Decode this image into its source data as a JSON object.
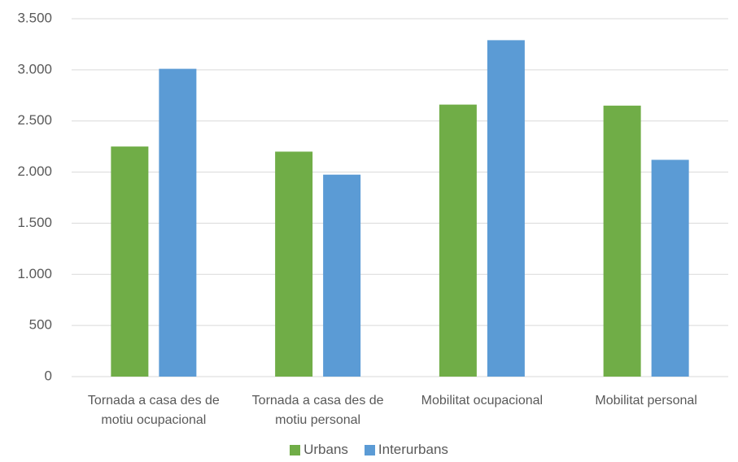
{
  "chart_data": {
    "type": "bar",
    "categories": [
      "Tornada a casa des de motiu ocupacional",
      "Tornada a casa des de motiu personal",
      "Mobilitat ocupacional",
      "Mobilitat personal"
    ],
    "series": [
      {
        "name": "Urbans",
        "color": "#70ad47",
        "values": [
          2250,
          2200,
          2660,
          2650
        ]
      },
      {
        "name": "Interurbans",
        "color": "#5b9bd5",
        "values": [
          3010,
          1975,
          3290,
          2120
        ]
      }
    ],
    "ylim": [
      0,
      3500
    ],
    "yticks": [
      0,
      500,
      {
        "value": 1000,
        "label": "1.000"
      },
      {
        "value": 1500,
        "label": "1.500"
      },
      {
        "value": 2000,
        "label": "2.000"
      },
      {
        "value": 2500,
        "label": "2.500"
      },
      {
        "value": 3000,
        "label": "3.000"
      },
      {
        "value": 3500,
        "label": "3.500"
      }
    ],
    "grid": true,
    "legend": "bottom"
  }
}
